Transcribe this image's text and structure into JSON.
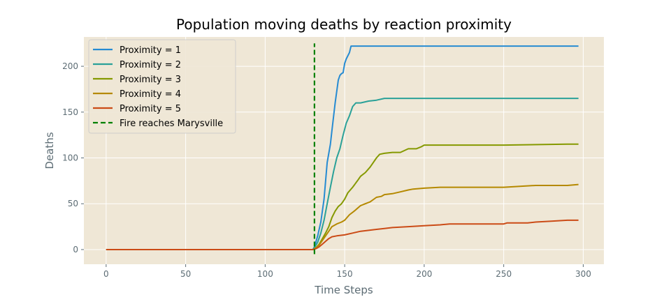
{
  "chart_data": {
    "type": "line",
    "title": "Population moving deaths by reaction proximity",
    "xlabel": "Time Steps",
    "ylabel": "Deaths",
    "xlim": [
      -14,
      313
    ],
    "ylim": [
      -16,
      232
    ],
    "xticks": [
      0,
      50,
      100,
      150,
      200,
      250,
      300
    ],
    "yticks": [
      0,
      50,
      100,
      150,
      200
    ],
    "grid": true,
    "legend": "top-left",
    "background": "#efe7d6",
    "series": [
      {
        "name": "Proximity = 1",
        "color": "#268bd2",
        "x": [
          0,
          130,
          131,
          133,
          135,
          137,
          139,
          141,
          142,
          144,
          146,
          147,
          148,
          149,
          150,
          151,
          153,
          154,
          155,
          160,
          297
        ],
        "y": [
          0,
          0,
          3,
          15,
          30,
          55,
          95,
          115,
          130,
          160,
          185,
          190,
          192,
          193,
          203,
          208,
          215,
          222,
          222,
          222,
          222
        ]
      },
      {
        "name": "Proximity = 2",
        "color": "#2aa198",
        "x": [
          0,
          130,
          131,
          133,
          135,
          137,
          139,
          141,
          143,
          145,
          147,
          149,
          151,
          153,
          155,
          157,
          160,
          165,
          170,
          175,
          180,
          190,
          200,
          297
        ],
        "y": [
          0,
          0,
          2,
          8,
          18,
          32,
          50,
          68,
          85,
          100,
          110,
          125,
          138,
          146,
          156,
          160,
          160,
          162,
          163,
          165,
          165,
          165,
          165,
          165
        ]
      },
      {
        "name": "Proximity = 3",
        "color": "#859900",
        "x": [
          0,
          130,
          132,
          134,
          136,
          138,
          140,
          142,
          144,
          146,
          148,
          150,
          152,
          155,
          158,
          160,
          163,
          166,
          168,
          170,
          172,
          175,
          180,
          185,
          190,
          195,
          198,
          200,
          205,
          250,
          290,
          297
        ],
        "y": [
          0,
          0,
          2,
          6,
          12,
          18,
          25,
          35,
          42,
          47,
          50,
          55,
          62,
          68,
          75,
          80,
          84,
          90,
          95,
          100,
          104,
          105,
          106,
          106,
          110,
          110,
          112,
          114,
          114,
          114,
          115,
          115
        ]
      },
      {
        "name": "Proximity = 4",
        "color": "#b58900",
        "x": [
          0,
          130,
          132,
          134,
          136,
          138,
          140,
          142,
          145,
          148,
          150,
          153,
          156,
          160,
          163,
          166,
          170,
          173,
          175,
          180,
          185,
          190,
          193,
          200,
          210,
          250,
          270,
          290,
          297
        ],
        "y": [
          0,
          0,
          2,
          5,
          10,
          15,
          20,
          25,
          28,
          30,
          32,
          38,
          42,
          48,
          50,
          52,
          57,
          58,
          60,
          61,
          63,
          65,
          66,
          67,
          68,
          68,
          70,
          70,
          71
        ]
      },
      {
        "name": "Proximity = 5",
        "color": "#cb4b16",
        "x": [
          0,
          130,
          132,
          134,
          136,
          138,
          140,
          142,
          145,
          150,
          155,
          160,
          165,
          170,
          175,
          180,
          190,
          200,
          210,
          216,
          230,
          250,
          252,
          265,
          270,
          280,
          290,
          297
        ],
        "y": [
          0,
          0,
          1,
          3,
          6,
          9,
          12,
          14,
          15,
          16,
          18,
          20,
          21,
          22,
          23,
          24,
          25,
          26,
          27,
          28,
          28,
          28,
          29,
          29,
          30,
          31,
          32,
          32
        ]
      },
      {
        "name": "Fire reaches Marysville",
        "color": "#008000",
        "dashed": true,
        "x": [
          131,
          131
        ],
        "y": [
          -5,
          225
        ]
      }
    ]
  }
}
